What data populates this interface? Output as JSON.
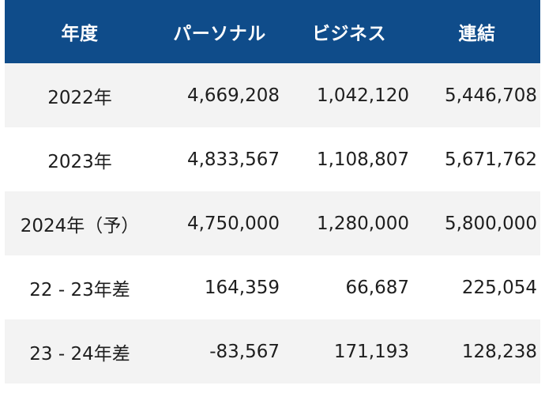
{
  "table": {
    "headers": [
      "年度",
      "パーソナル",
      "ビジネス",
      "連結"
    ],
    "rows": [
      {
        "label": "2022年",
        "personal": "4,669,208",
        "business": "1,042,120",
        "consolidated": "5,446,708"
      },
      {
        "label": "2023年",
        "personal": "4,833,567",
        "business": "1,108,807",
        "consolidated": "5,671,762"
      },
      {
        "label": "2024年（予）",
        "personal": "4,750,000",
        "business": "1,280,000",
        "consolidated": "5,800,000"
      },
      {
        "label": "22 - 23年差",
        "personal": "164,359",
        "business": "66,687",
        "consolidated": "225,054"
      },
      {
        "label": "23 - 24年差",
        "personal": "-83,567",
        "business": "171,193",
        "consolidated": "128,238"
      }
    ]
  },
  "colors": {
    "header_background": "#0f4c8a",
    "header_text": "#ffffff",
    "row_shade": "#f3f3f3",
    "row_plain": "#ffffff",
    "text": "#1e1e1e"
  }
}
